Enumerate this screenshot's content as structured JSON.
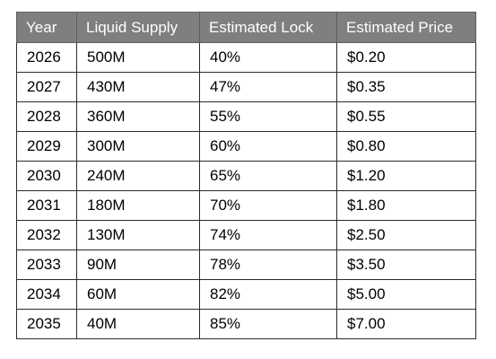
{
  "table": {
    "headers": [
      "Year",
      "Liquid Supply",
      "Estimated Lock",
      "Estimated Price"
    ],
    "rows": [
      [
        "2026",
        "500M",
        "40%",
        "$0.20"
      ],
      [
        "2027",
        "430M",
        "47%",
        "$0.35"
      ],
      [
        "2028",
        "360M",
        "55%",
        "$0.55"
      ],
      [
        "2029",
        "300M",
        "60%",
        "$0.80"
      ],
      [
        "2030",
        "240M",
        "65%",
        "$1.20"
      ],
      [
        "2031",
        "180M",
        "70%",
        "$1.80"
      ],
      [
        "2032",
        "130M",
        "74%",
        "$2.50"
      ],
      [
        "2033",
        "90M",
        "78%",
        "$3.50"
      ],
      [
        "2034",
        "60M",
        "82%",
        "$5.00"
      ],
      [
        "2035",
        "40M",
        "85%",
        "$7.00"
      ]
    ]
  },
  "colors": {
    "header_background": "#7f7f7f",
    "header_text": "#ffffff",
    "border": "#2b2b2b",
    "body_text": "#000000"
  }
}
